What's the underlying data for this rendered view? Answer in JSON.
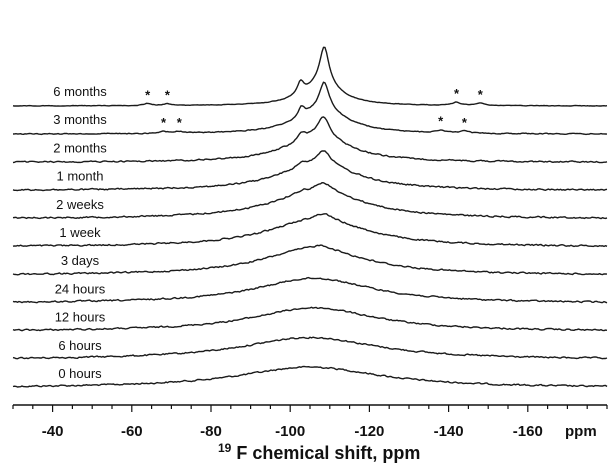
{
  "chart_data": {
    "type": "line",
    "title": "",
    "xlabel_sup": "19",
    "xlabel": "F chemical shift, ppm",
    "unit_label": "ppm",
    "xlim": [
      -30,
      -180
    ],
    "x_ticks": [
      -40,
      -60,
      -80,
      -100,
      -120,
      -140,
      -160
    ],
    "x_tick_labels": [
      "-40",
      "-60",
      "-80",
      "-100",
      "-120",
      "-140",
      "-160"
    ],
    "x_minor_step": 5,
    "grid": false,
    "star_symbol": "*",
    "series": [
      {
        "name": "0 hours",
        "peaks": [
          {
            "x": -105,
            "h": 0.3,
            "w": 22
          }
        ],
        "noise": 1.0,
        "stars": []
      },
      {
        "name": "6 hours",
        "peaks": [
          {
            "x": -105,
            "h": 0.32,
            "w": 21
          }
        ],
        "noise": 1.0,
        "stars": []
      },
      {
        "name": "12 hours",
        "peaks": [
          {
            "x": -106,
            "h": 0.34,
            "w": 19
          }
        ],
        "noise": 1.0,
        "stars": []
      },
      {
        "name": "24 hours",
        "peaks": [
          {
            "x": -106,
            "h": 0.36,
            "w": 18
          }
        ],
        "noise": 1.0,
        "stars": []
      },
      {
        "name": "3 days",
        "peaks": [
          {
            "x": -106,
            "h": 0.38,
            "w": 16
          },
          {
            "x": -108,
            "h": 0.05,
            "w": 3
          }
        ],
        "noise": 1.0,
        "stars": []
      },
      {
        "name": "1 week",
        "peaks": [
          {
            "x": -107,
            "h": 0.4,
            "w": 15
          },
          {
            "x": -108.5,
            "h": 0.08,
            "w": 2.5
          }
        ],
        "noise": 1.0,
        "stars": []
      },
      {
        "name": "2 weeks",
        "peaks": [
          {
            "x": -107,
            "h": 0.4,
            "w": 14
          },
          {
            "x": -108.5,
            "h": 0.12,
            "w": 2.2
          },
          {
            "x": -103,
            "h": 0.03,
            "w": 1.5
          }
        ],
        "noise": 1.0,
        "stars": []
      },
      {
        "name": "1 month",
        "peaks": [
          {
            "x": -107,
            "h": 0.38,
            "w": 12
          },
          {
            "x": -108.5,
            "h": 0.2,
            "w": 2.0
          },
          {
            "x": -103,
            "h": 0.05,
            "w": 1.3
          }
        ],
        "noise": 1.0,
        "stars": []
      },
      {
        "name": "2 months",
        "peaks": [
          {
            "x": -107,
            "h": 0.36,
            "w": 10
          },
          {
            "x": -108.5,
            "h": 0.3,
            "w": 1.8
          },
          {
            "x": -103,
            "h": 0.1,
            "w": 1.2
          }
        ],
        "noise": 0.9,
        "stars": []
      },
      {
        "name": "3 months",
        "peaks": [
          {
            "x": -108,
            "h": 0.34,
            "w": 8
          },
          {
            "x": -108.6,
            "h": 0.4,
            "w": 1.5
          },
          {
            "x": -102.8,
            "h": 0.14,
            "w": 1.0
          },
          {
            "x": -68,
            "h": 0.03,
            "w": 1.2
          },
          {
            "x": -72,
            "h": 0.025,
            "w": 1.2
          },
          {
            "x": -138,
            "h": 0.04,
            "w": 1.2
          },
          {
            "x": -144,
            "h": 0.03,
            "w": 1.2
          }
        ],
        "noise": 0.6,
        "stars": [
          -68,
          -72,
          -138,
          -144
        ]
      },
      {
        "name": "6 months",
        "peaks": [
          {
            "x": -108,
            "h": 0.3,
            "w": 6
          },
          {
            "x": -108.6,
            "h": 0.55,
            "w": 1.4
          },
          {
            "x": -102.6,
            "h": 0.18,
            "w": 1.0
          },
          {
            "x": -64,
            "h": 0.03,
            "w": 1.2
          },
          {
            "x": -69,
            "h": 0.025,
            "w": 1.2
          },
          {
            "x": -142,
            "h": 0.045,
            "w": 1.2
          },
          {
            "x": -148,
            "h": 0.035,
            "w": 1.2
          }
        ],
        "noise": 0.35,
        "stars": [
          -64,
          -69,
          -142,
          -148
        ]
      }
    ]
  }
}
